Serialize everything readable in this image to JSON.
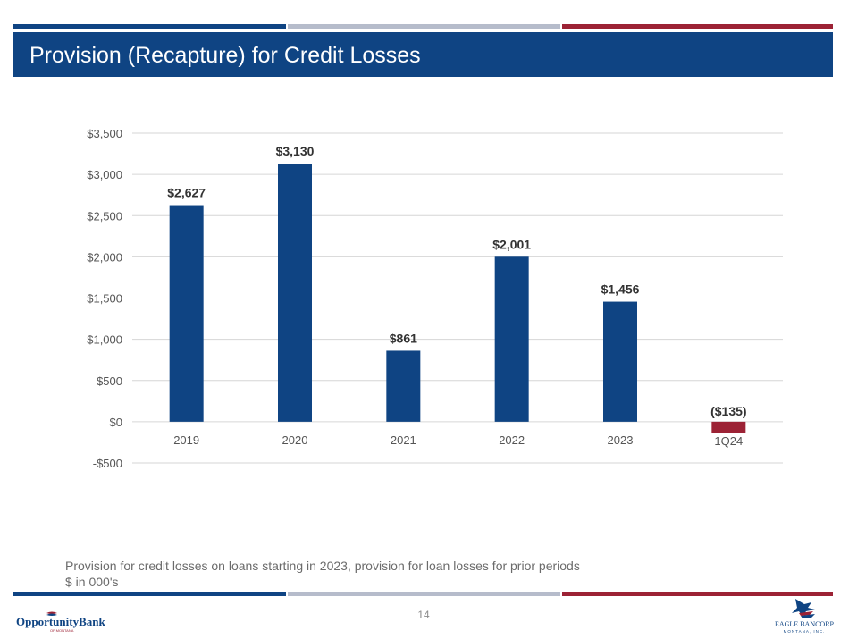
{
  "header": {
    "title": "Provision (Recapture) for Credit Losses"
  },
  "colors": {
    "navy": "#0f4483",
    "gray": "#b6bccb",
    "maroon": "#9c2235",
    "negative_bar": "#9c2235",
    "positive_bar": "#0f4483"
  },
  "chart_data": {
    "type": "bar",
    "title": "",
    "xlabel": "",
    "ylabel": "",
    "categories": [
      "2019",
      "2020",
      "2021",
      "2022",
      "2023",
      "1Q24"
    ],
    "values": [
      2627,
      3130,
      861,
      2001,
      1456,
      -135
    ],
    "data_labels": [
      "$2,627",
      "$3,130",
      "$861",
      "$2,001",
      "$1,456",
      "($135)"
    ],
    "ylim": [
      -500,
      3500
    ],
    "yticks": [
      3500,
      3000,
      2500,
      2000,
      1500,
      1000,
      500,
      0,
      -500
    ],
    "ytick_labels": [
      "$3,500",
      "$3,000",
      "$2,500",
      "$2,000",
      "$1,500",
      "$1,000",
      "$500",
      "$0",
      "-$500"
    ],
    "grid": true,
    "legend": "none"
  },
  "footnotes": {
    "line1": "Provision for credit losses on loans starting in 2023, provision for loan losses for prior periods",
    "line2": "$ in 000's"
  },
  "footer": {
    "page_number": "14",
    "left_logo_text": "OpportunityBank",
    "left_logo_subtext": "OF MONTANA",
    "right_logo_text": "EAGLE BANCORP",
    "right_logo_subtext": "MONTANA, INC."
  }
}
